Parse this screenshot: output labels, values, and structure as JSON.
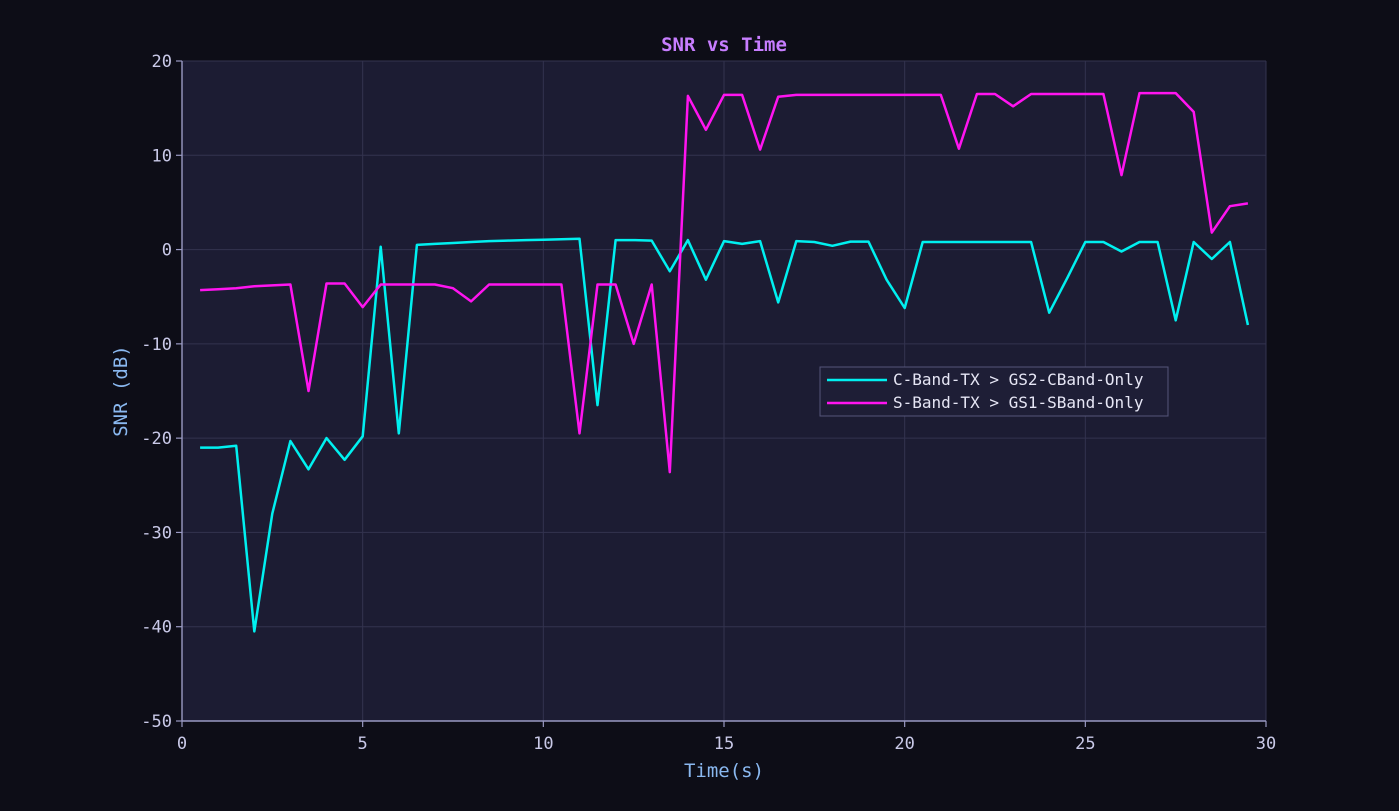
{
  "colors": {
    "page_bg": "#0d0d17",
    "plot_bg": "#1c1c33",
    "grid": "#33334f",
    "axis": "#9a9ac4",
    "legend_bg": "#1e1e36",
    "legend_border": "#55557a"
  },
  "chart_data": {
    "type": "line",
    "title": "SNR vs Time",
    "xlabel": "Time(s)",
    "ylabel": "SNR (dB)",
    "xlim": [
      0,
      30
    ],
    "ylim": [
      -50,
      20
    ],
    "xticks": [
      0,
      5,
      10,
      15,
      20,
      25,
      30
    ],
    "yticks": [
      -50,
      -40,
      -30,
      -20,
      -10,
      0,
      10,
      20
    ],
    "grid": true,
    "legend_position": "center-right",
    "series": [
      {
        "name": "C-Band-TX > GS2-CBand-Only",
        "color": "#00f0f0",
        "x": [
          0.5,
          1.0,
          1.5,
          2.0,
          2.5,
          3.0,
          3.5,
          4.0,
          4.5,
          5.0,
          5.5,
          6.0,
          6.5,
          7.0,
          7.5,
          8.0,
          8.5,
          9.0,
          9.5,
          10.0,
          10.5,
          11.0,
          11.5,
          12.0,
          12.5,
          13.0,
          13.5,
          14.0,
          14.5,
          15.0,
          15.5,
          16.0,
          16.5,
          17.0,
          17.5,
          18.0,
          18.5,
          19.0,
          19.5,
          20.0,
          20.5,
          21.0,
          21.5,
          22.0,
          22.5,
          23.0,
          23.5,
          24.0,
          24.5,
          25.0,
          25.5,
          26.0,
          26.5,
          27.0,
          27.5,
          28.0,
          28.5,
          29.0,
          29.5
        ],
        "y": [
          -21.0,
          -21.0,
          -20.8,
          -40.5,
          -28.0,
          -20.3,
          -23.3,
          -20.0,
          -22.3,
          -19.8,
          0.3,
          -19.5,
          0.5,
          0.6,
          0.7,
          0.8,
          0.9,
          0.95,
          1.0,
          1.05,
          1.1,
          1.15,
          -16.5,
          1.0,
          1.0,
          0.95,
          -2.3,
          1.0,
          -3.2,
          0.9,
          0.6,
          0.9,
          -5.6,
          0.9,
          0.8,
          0.4,
          0.85,
          0.85,
          -3.2,
          -6.2,
          0.8,
          0.8,
          0.8,
          0.8,
          0.8,
          0.8,
          0.8,
          -6.7,
          -3.0,
          0.8,
          0.8,
          -0.2,
          0.8,
          0.8,
          -7.5,
          0.8,
          -1.0,
          0.8,
          -8.0
        ]
      },
      {
        "name": "S-Band-TX > GS1-SBand-Only",
        "color": "#ff14f0",
        "x": [
          0.5,
          1.0,
          1.5,
          2.0,
          2.5,
          3.0,
          3.5,
          4.0,
          4.5,
          5.0,
          5.5,
          6.0,
          6.5,
          7.0,
          7.5,
          8.0,
          8.5,
          9.0,
          9.5,
          10.0,
          10.5,
          11.0,
          11.5,
          12.0,
          12.5,
          13.0,
          13.5,
          14.0,
          14.5,
          15.0,
          15.5,
          16.0,
          16.5,
          17.0,
          17.5,
          18.0,
          18.5,
          19.0,
          19.5,
          20.0,
          20.5,
          21.0,
          21.5,
          22.0,
          22.5,
          23.0,
          23.5,
          24.0,
          24.5,
          25.0,
          25.5,
          26.0,
          26.5,
          27.0,
          27.5,
          28.0,
          28.5,
          29.0,
          29.5
        ],
        "y": [
          -4.3,
          -4.2,
          -4.1,
          -3.9,
          -3.8,
          -3.7,
          -15.0,
          -3.6,
          -3.6,
          -6.1,
          -3.7,
          -3.7,
          -3.7,
          -3.7,
          -4.1,
          -5.5,
          -3.7,
          -3.7,
          -3.7,
          -3.7,
          -3.7,
          -19.5,
          -3.7,
          -3.7,
          -10.0,
          -3.7,
          -23.6,
          16.3,
          12.7,
          16.4,
          16.4,
          10.6,
          16.2,
          16.4,
          16.4,
          16.4,
          16.4,
          16.4,
          16.4,
          16.4,
          16.4,
          16.4,
          10.7,
          16.5,
          16.5,
          15.2,
          16.5,
          16.5,
          16.5,
          16.5,
          16.5,
          7.9,
          16.6,
          16.6,
          16.6,
          14.6,
          1.8,
          4.6,
          4.9
        ]
      }
    ]
  }
}
